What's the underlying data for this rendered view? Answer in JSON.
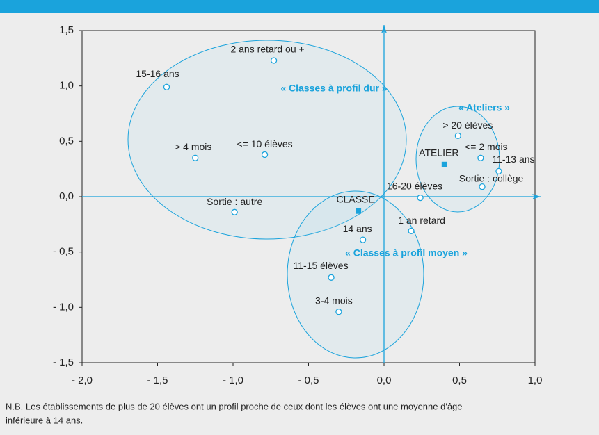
{
  "chart_data": {
    "type": "scatter",
    "color": "#1aa3dc",
    "points": {
      "labels": [
        "2 ans retard ou +",
        "15-16 ans",
        "> 4 mois",
        "<= 10 élèves",
        "Sortie : autre",
        "> 20 élèves",
        "<= 2 mois",
        "11-13 ans",
        "Sortie : collège",
        "16-20 élèves",
        "1 an retard",
        "14 ans",
        "11-15 élèves",
        "3-4 mois"
      ],
      "x": [
        -0.73,
        -1.44,
        -1.25,
        -0.79,
        -0.99,
        0.49,
        0.64,
        0.76,
        0.65,
        0.24,
        0.18,
        -0.14,
        -0.35,
        -0.3
      ],
      "y": [
        1.23,
        0.99,
        0.35,
        0.38,
        -0.14,
        0.55,
        0.35,
        0.23,
        0.09,
        -0.01,
        -0.31,
        -0.39,
        -0.73,
        -1.04
      ]
    },
    "squares": {
      "labels": [
        "CLASSE",
        "ATELIER"
      ],
      "x": [
        -0.17,
        0.4
      ],
      "y": [
        -0.13,
        0.29
      ]
    },
    "annotations": [
      "« Classes à profil dur »",
      "« Ateliers »",
      "« Classes à profil moyen »"
    ],
    "xlim": [
      -2.0,
      1.0
    ],
    "ylim": [
      -1.5,
      1.5
    ],
    "xticks": [
      {
        "value": -2.0,
        "label": "- 2,0"
      },
      {
        "value": -1.5,
        "label": "- 1,5"
      },
      {
        "value": -1.0,
        "label": "- 1,0"
      },
      {
        "value": -0.5,
        "label": "- 0,5"
      },
      {
        "value": 0.0,
        "label": "0,0"
      },
      {
        "value": 0.5,
        "label": "0,5"
      },
      {
        "value": 1.0,
        "label": "1,0"
      }
    ],
    "yticks": [
      {
        "value": 1.5,
        "label": "1,5"
      },
      {
        "value": 1.0,
        "label": "1,0"
      },
      {
        "value": 0.5,
        "label": "0,5"
      },
      {
        "value": 0.0,
        "label": "0,0"
      },
      {
        "value": -0.5,
        "label": "- 0,5"
      },
      {
        "value": -1.0,
        "label": "- 1,0"
      },
      {
        "value": -1.5,
        "label": "- 1,5"
      }
    ],
    "note": [
      "N.B. Les établissements de plus de 20 élèves ont un profil proche de ceux dont les élèves ont une moyenne d'âge",
      "inférieure à 14 ans."
    ]
  }
}
